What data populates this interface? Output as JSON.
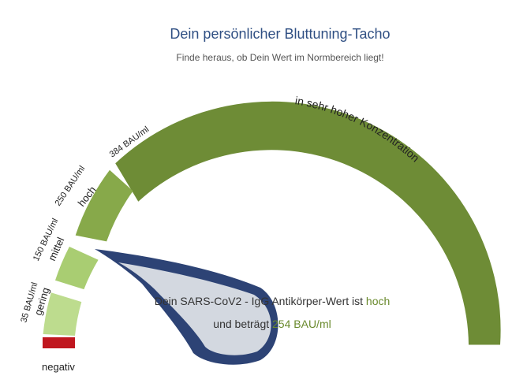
{
  "header": {
    "title": "Dein persönlicher Bluttuning-Tacho",
    "subtitle": "Finde heraus, ob Dein Wert im Normbereich liegt!"
  },
  "gauge": {
    "segments": [
      {
        "name": "negativ",
        "label": "negativ",
        "color": "#c0171f"
      },
      {
        "name": "gering",
        "label": "gering",
        "threshold_label": "35 BAU/ml",
        "color": "#bddc8e"
      },
      {
        "name": "mittel",
        "label": "mittel",
        "threshold_label": "150 BAU/ml",
        "color": "#a9cd72"
      },
      {
        "name": "hoch",
        "label": "hoch",
        "threshold_label": "250 BAU/ml",
        "color": "#87a94a"
      },
      {
        "name": "sehr-hoch",
        "label": "in sehr hoher Konzentration",
        "threshold_label": "384 BAU/ml",
        "color": "#6e8c36"
      }
    ],
    "needle_color": "#2d4375",
    "needle_fill": "#d3d8e0",
    "result": {
      "line1_prefix": "Dein SARS-CoV2 - IgG Antikörper-Wert ist",
      "line1_level": "hoch",
      "line2_prefix": "und beträgt",
      "line2_value": "254 BAU/ml"
    }
  }
}
